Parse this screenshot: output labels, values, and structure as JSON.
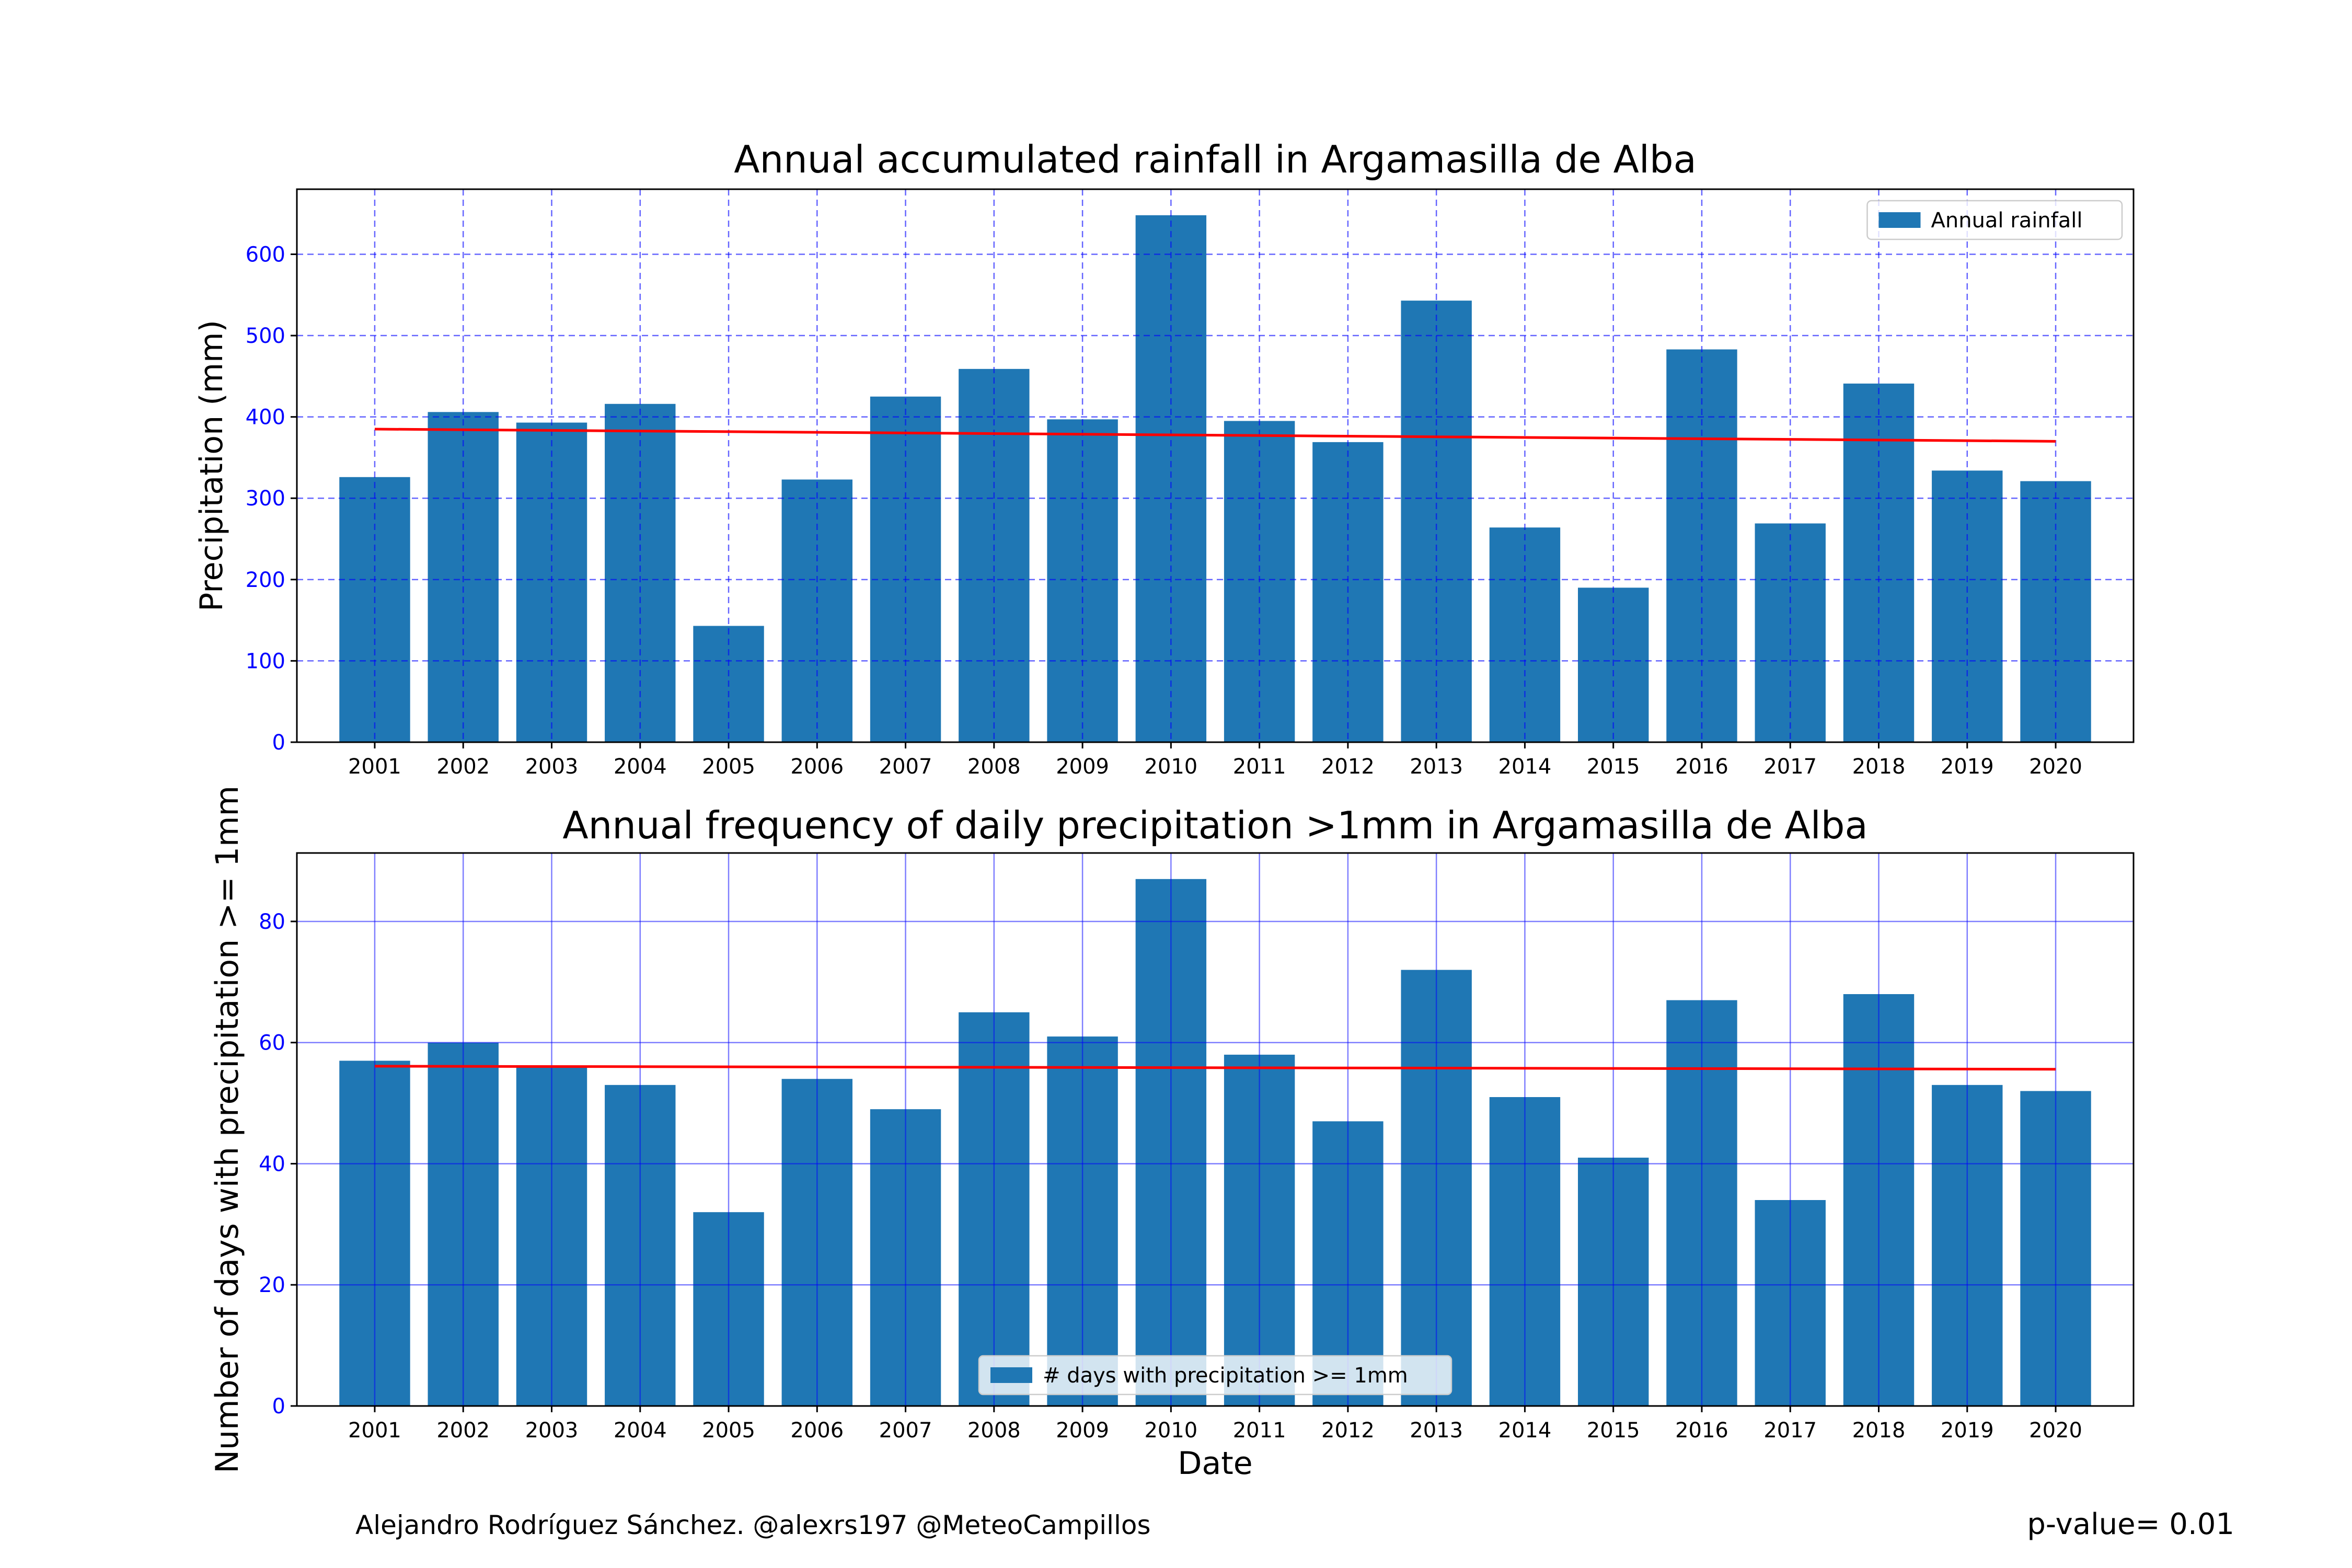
{
  "credit": "Alejandro Rodríguez Sánchez. @alexrs197 @MeteoCampillos",
  "pvalue": "p-value= 0.01",
  "chart_data": [
    {
      "type": "bar",
      "title": "Annual accumulated rainfall in Argamasilla de Alba",
      "xlabel": "",
      "ylabel": "Precipitation (mm)",
      "categories": [
        "2001",
        "2002",
        "2003",
        "2004",
        "2005",
        "2006",
        "2007",
        "2008",
        "2009",
        "2010",
        "2011",
        "2012",
        "2013",
        "2014",
        "2015",
        "2016",
        "2017",
        "2018",
        "2019",
        "2020"
      ],
      "series": [
        {
          "name": "Annual rainfall",
          "values": [
            326,
            406,
            393,
            416,
            143,
            323,
            425,
            459,
            397,
            648,
            395,
            369,
            543,
            264,
            190,
            483,
            269,
            441,
            334,
            321
          ]
        }
      ],
      "trend": [
        385,
        370
      ],
      "ylim": [
        0,
        680
      ],
      "yticks": [
        0,
        100,
        200,
        300,
        400,
        500,
        600
      ],
      "grid": "dashed",
      "legend": "upper right",
      "colors": {
        "bar": "#1f77b4",
        "trend": "#ff0000",
        "grid": "#0000ff",
        "ytick": "#0000ff"
      }
    },
    {
      "type": "bar",
      "title": "Annual frequency of daily precipitation >1mm in Argamasilla de Alba",
      "xlabel": "Date",
      "ylabel": "Number of days with precipitation >= 1mm",
      "categories": [
        "2001",
        "2002",
        "2003",
        "2004",
        "2005",
        "2006",
        "2007",
        "2008",
        "2009",
        "2010",
        "2011",
        "2012",
        "2013",
        "2014",
        "2015",
        "2016",
        "2017",
        "2018",
        "2019",
        "2020"
      ],
      "series": [
        {
          "name": "# days with precipitation >= 1mm",
          "values": [
            57,
            60,
            56,
            53,
            32,
            54,
            49,
            65,
            61,
            87,
            58,
            47,
            72,
            51,
            41,
            67,
            34,
            68,
            53,
            52
          ]
        }
      ],
      "trend": [
        56.1,
        55.6
      ],
      "ylim": [
        0,
        91.3
      ],
      "yticks": [
        0,
        20,
        40,
        60,
        80
      ],
      "grid": "solid",
      "legend": "lower center",
      "colors": {
        "bar": "#1f77b4",
        "trend": "#ff0000",
        "grid": "#0000ff",
        "ytick": "#0000ff"
      }
    }
  ]
}
